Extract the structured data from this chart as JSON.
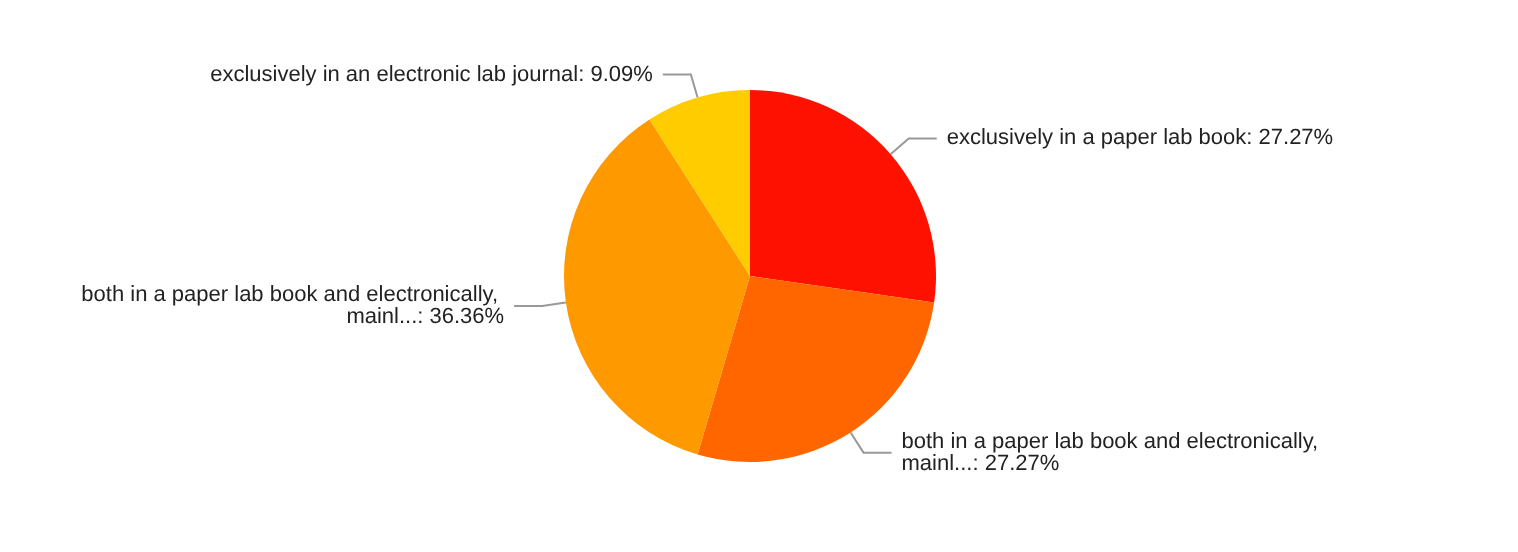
{
  "chart_data": {
    "type": "pie",
    "categories": [
      "exclusively in a paper lab book",
      "both in a paper lab book and electronically, mainl...",
      "both in a paper lab book and electronically, mainl...",
      "exclusively in an electronic lab journal"
    ],
    "values": [
      27.27,
      27.27,
      36.36,
      9.09
    ],
    "value_labels": [
      "27.27%",
      "27.27%",
      "36.36%",
      "9.09%"
    ],
    "colors": [
      "#ff1100",
      "#ff6600",
      "#ff9900",
      "#ffcc00"
    ]
  }
}
